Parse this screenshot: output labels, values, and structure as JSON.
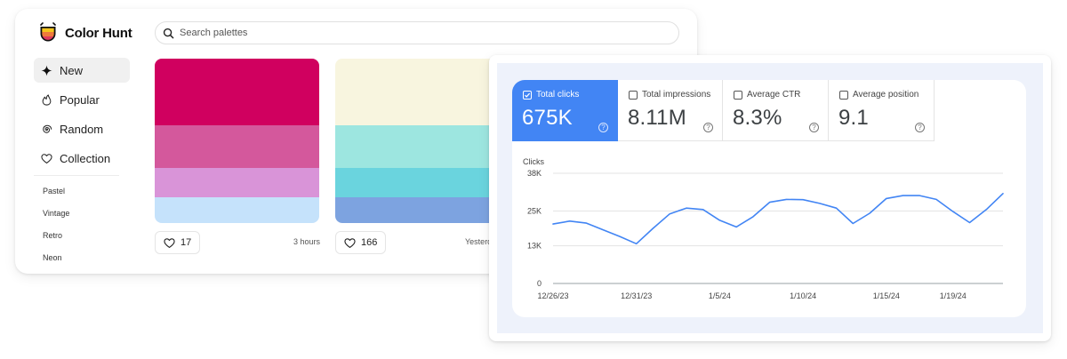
{
  "colorhunt": {
    "brand": "Color Hunt",
    "search_placeholder": "Search palettes",
    "nav": [
      {
        "label": "New",
        "icon": "sparkle-icon",
        "active": true
      },
      {
        "label": "Popular",
        "icon": "flame-icon",
        "active": false
      },
      {
        "label": "Random",
        "icon": "spiral-icon",
        "active": false
      },
      {
        "label": "Collection",
        "icon": "heart-icon",
        "active": false
      }
    ],
    "tags": [
      "Pastel",
      "Vintage",
      "Retro",
      "Neon"
    ],
    "palettes": [
      {
        "colors": [
          "#d0005f",
          "#d4589c",
          "#d994d8",
          "#c5e2fb"
        ],
        "likes": "17",
        "time": "3 hours"
      },
      {
        "colors": [
          "#f8f5df",
          "#9de6e0",
          "#6ad4de",
          "#7da3e0"
        ],
        "likes": "166",
        "time": "Yesterday"
      }
    ]
  },
  "gsc": {
    "metrics": [
      {
        "label": "Total clicks",
        "value": "675K",
        "selected": true
      },
      {
        "label": "Total impressions",
        "value": "8.11M",
        "selected": false
      },
      {
        "label": "Average CTR",
        "value": "8.3%",
        "selected": false
      },
      {
        "label": "Average position",
        "value": "9.1",
        "selected": false
      }
    ],
    "help_glyph": "?",
    "accent": "#4285f4"
  },
  "chart_data": {
    "type": "line",
    "ylabel": "Clicks",
    "y_ticks": [
      {
        "value": 0,
        "label": "0"
      },
      {
        "value": 13000,
        "label": "13K"
      },
      {
        "value": 25000,
        "label": "25K"
      },
      {
        "value": 38000,
        "label": "38K"
      }
    ],
    "ylim": [
      0,
      38000
    ],
    "x_ticks": [
      {
        "index": 0,
        "label": "12/26/23"
      },
      {
        "index": 5,
        "label": "12/31/23"
      },
      {
        "index": 10,
        "label": "1/5/24"
      },
      {
        "index": 15,
        "label": "1/10/24"
      },
      {
        "index": 20,
        "label": "1/15/24"
      },
      {
        "index": 24,
        "label": "1/19/24"
      }
    ],
    "series": [
      {
        "values": [
          20500,
          21500,
          20800,
          18500,
          16200,
          13700,
          19000,
          24000,
          26000,
          25500,
          21800,
          19500,
          23000,
          28000,
          29000,
          28900,
          27600,
          26000,
          20700,
          24200,
          29300,
          30300,
          30300,
          29000,
          24800,
          21000,
          25500,
          31000
        ],
        "color": "#4285f4"
      }
    ],
    "grid": true
  }
}
